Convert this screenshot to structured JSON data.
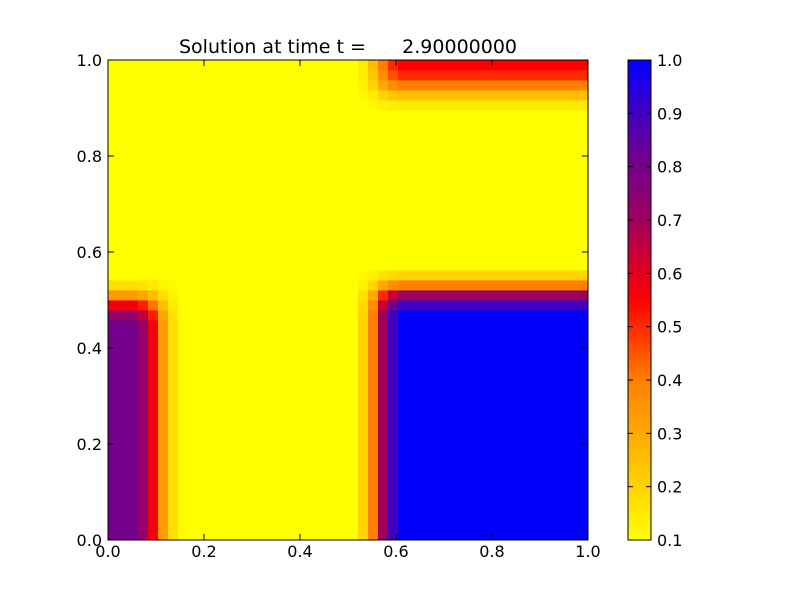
{
  "chart_data": {
    "type": "heatmap",
    "title": "Solution at time t =      2.90000000",
    "xlabel": "",
    "ylabel": "",
    "xlim": [
      0.0,
      1.0
    ],
    "ylim": [
      0.0,
      1.0
    ],
    "xticks": [
      "0.0",
      "0.2",
      "0.4",
      "0.6",
      "0.8",
      "1.0"
    ],
    "yticks": [
      "0.0",
      "0.2",
      "0.4",
      "0.6",
      "0.8",
      "1.0"
    ],
    "grid": false,
    "grid_size": [
      48,
      48
    ],
    "value_range": [
      0.1,
      1.0
    ],
    "colorbar": {
      "ticks": [
        "0.1",
        "0.2",
        "0.3",
        "0.4",
        "0.5",
        "0.6",
        "0.7",
        "0.8",
        "0.9",
        "1.0"
      ],
      "colormap": [
        {
          "value": 0.1,
          "color": "#ffff00"
        },
        {
          "value": 0.25,
          "color": "#ffbf00"
        },
        {
          "value": 0.4,
          "color": "#ff7f00"
        },
        {
          "value": 0.55,
          "color": "#ff0000"
        },
        {
          "value": 0.7,
          "color": "#9f0060"
        },
        {
          "value": 0.85,
          "color": "#6000a0"
        },
        {
          "value": 1.0,
          "color": "#0000ff"
        }
      ]
    },
    "regions": [
      {
        "description": "top-right band",
        "x": [
          0.56,
          1.0
        ],
        "y": [
          0.94,
          1.0
        ],
        "value": 0.55
      },
      {
        "description": "bottom-left strip",
        "x": [
          0.0,
          0.1
        ],
        "y": [
          0.0,
          0.5
        ],
        "value": 0.8
      },
      {
        "description": "bottom-right block",
        "x": [
          0.56,
          1.0
        ],
        "y": [
          0.0,
          0.52
        ],
        "value": 1.0
      }
    ],
    "background_value": 0.1
  }
}
